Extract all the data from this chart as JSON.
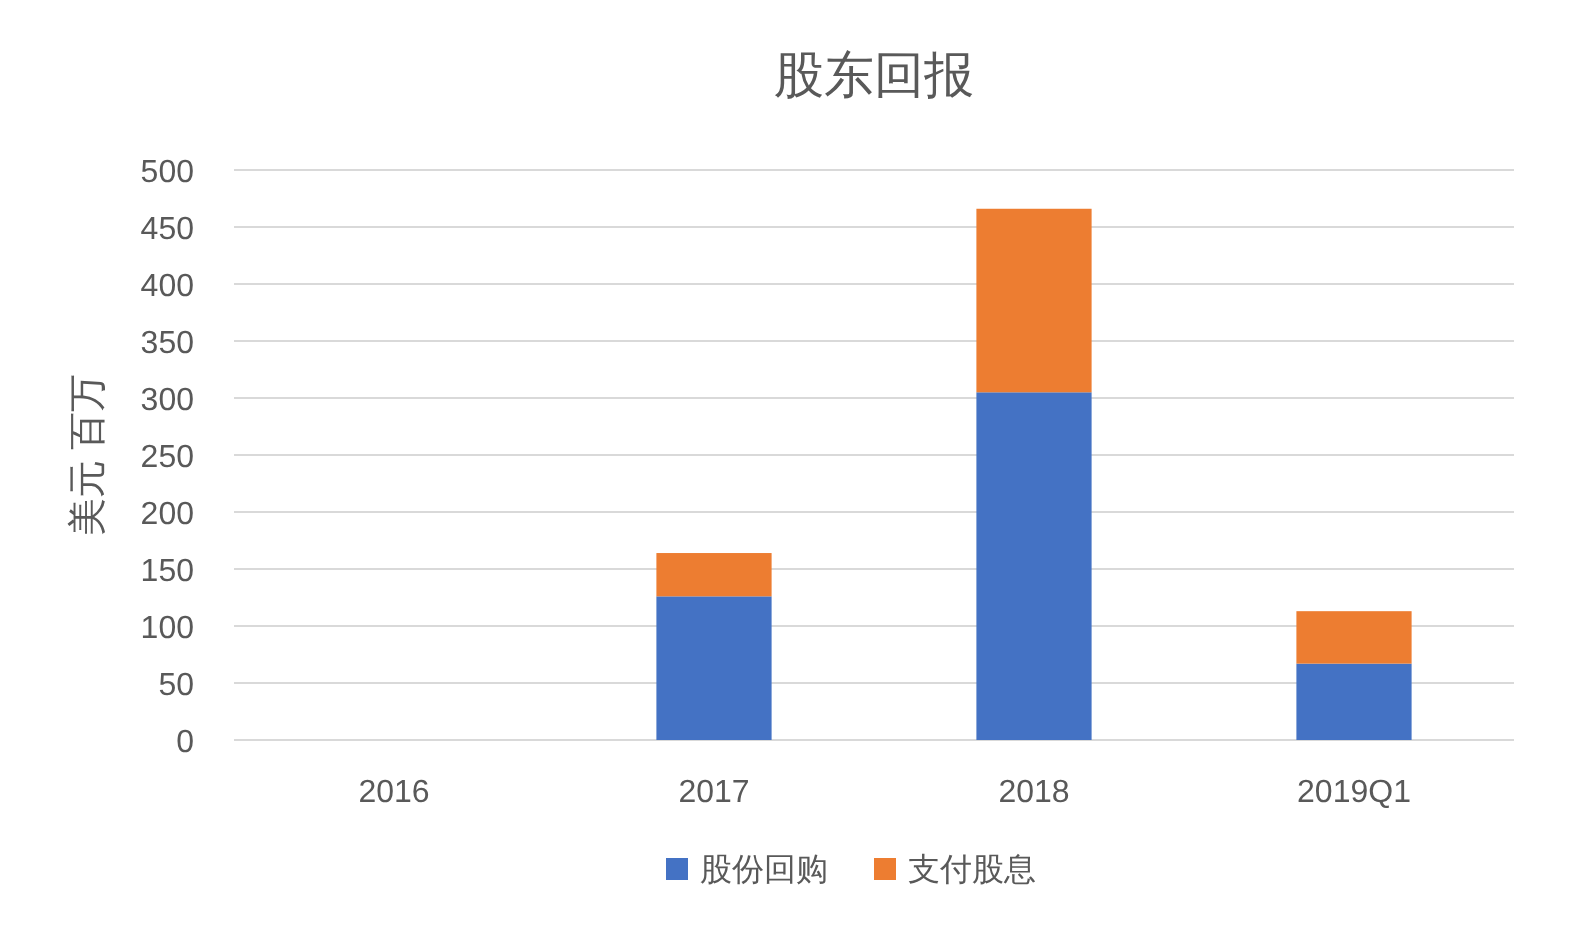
{
  "chart_data": {
    "type": "bar",
    "title": "股东回报",
    "ylabel": "美元 百万",
    "categories": [
      "2016",
      "2017",
      "2018",
      "2019Q1"
    ],
    "series": [
      {
        "name": "股份回购",
        "color": "#4472c4",
        "values": [
          null,
          126,
          305,
          67
        ]
      },
      {
        "name": "支付股息",
        "color": "#ed7d31",
        "values": [
          null,
          38,
          161,
          46
        ]
      }
    ],
    "stacked": true,
    "ylim": [
      0,
      500
    ],
    "yticks": [
      0,
      50,
      100,
      150,
      200,
      250,
      300,
      350,
      400,
      450,
      500
    ],
    "grid": "y",
    "legend": "bottom"
  }
}
